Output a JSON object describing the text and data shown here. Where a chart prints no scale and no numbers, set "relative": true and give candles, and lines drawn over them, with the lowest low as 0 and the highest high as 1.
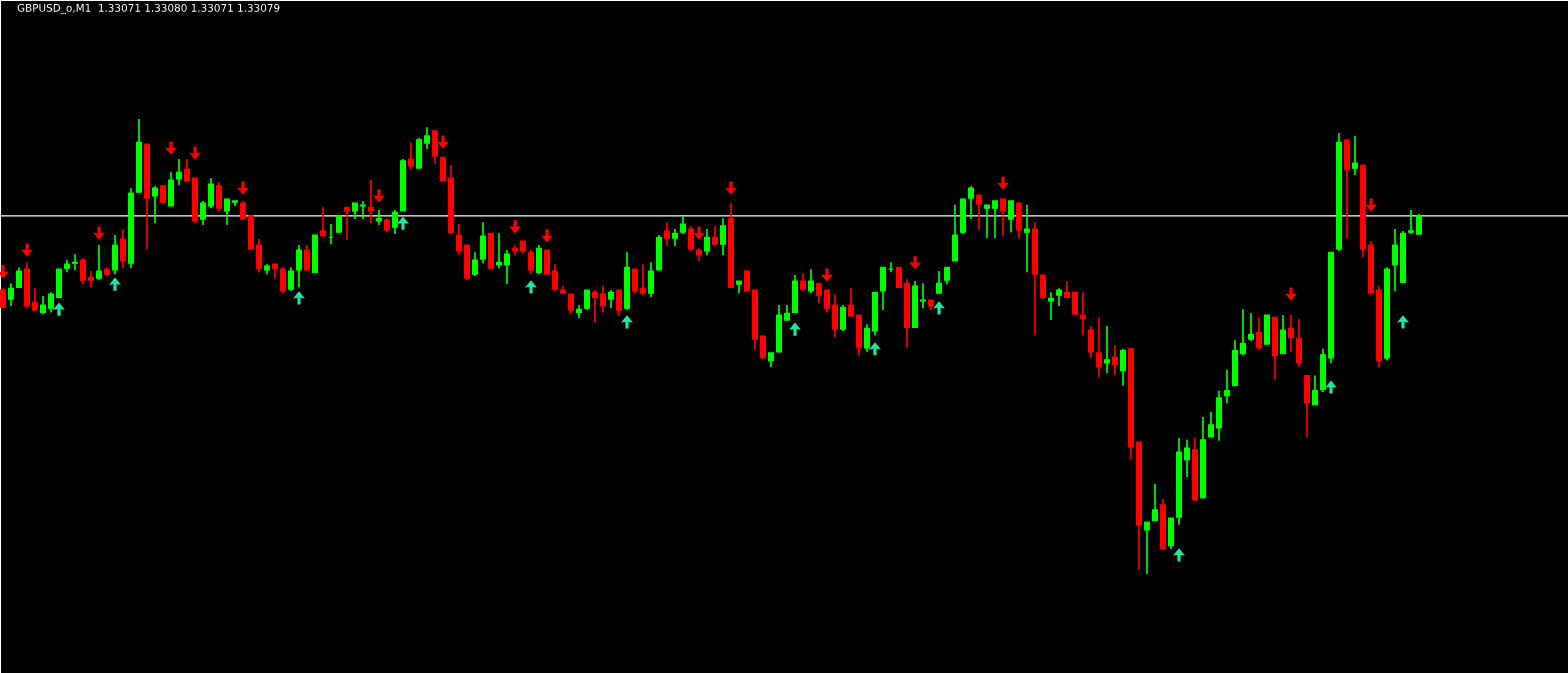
{
  "chart_data": {
    "type": "candlestick",
    "title": "GBPUSD_o,M1  1.33071 1.33080 1.33071 1.33079",
    "relative": true,
    "categories": [
      null,
      null,
      null,
      null,
      null,
      null,
      null,
      null,
      null,
      null,
      null,
      null,
      null,
      null,
      null,
      null,
      null,
      null,
      null,
      null,
      null,
      null,
      null,
      null,
      null,
      null,
      null,
      null,
      null,
      null,
      null,
      null,
      null,
      null,
      null,
      null,
      null,
      null,
      null,
      null,
      null,
      null,
      null,
      null,
      null,
      null,
      null,
      null,
      null,
      null,
      null,
      null,
      null,
      null,
      null,
      null,
      null,
      null,
      null,
      null,
      null,
      null,
      null,
      null,
      null,
      null,
      null,
      null,
      null,
      null,
      null,
      null,
      null,
      null,
      null,
      null,
      null,
      null,
      null,
      null,
      null,
      null,
      null,
      null,
      null,
      null,
      null,
      null,
      null,
      null,
      null,
      null,
      null,
      null,
      null,
      null,
      null,
      null,
      null,
      null,
      null,
      null,
      null,
      null,
      null,
      null,
      null,
      null,
      null,
      null,
      null,
      null,
      null,
      null,
      null,
      null,
      null,
      null,
      null,
      null,
      null,
      null,
      null,
      null,
      null,
      null,
      null,
      null,
      null,
      null,
      null,
      null,
      null,
      null,
      null,
      null,
      null,
      null,
      null,
      null,
      null,
      null,
      null,
      null,
      null,
      null,
      null,
      null,
      null,
      null,
      null,
      null,
      null,
      null,
      null,
      null,
      null,
      null,
      null,
      null,
      null,
      null,
      null,
      null,
      null,
      null,
      null,
      null,
      null,
      null,
      null,
      null,
      null,
      null,
      null,
      null,
      null,
      null
    ],
    "ohlc": [
      [
        0.624,
        0.628,
        0.584,
        0.586
      ],
      [
        0.604,
        0.639,
        0.589,
        0.628
      ],
      [
        0.63,
        0.674,
        0.63,
        0.666
      ],
      [
        0.67,
        0.685,
        0.584,
        0.589
      ],
      [
        0.597,
        0.628,
        0.58,
        0.58
      ],
      [
        0.575,
        0.611,
        0.571,
        0.591
      ],
      [
        0.584,
        0.619,
        0.575,
        0.615
      ],
      [
        0.608,
        0.67,
        0.608,
        0.67
      ],
      [
        0.672,
        0.69,
        0.663,
        0.681
      ],
      [
        0.683,
        0.703,
        0.668,
        0.685
      ],
      [
        0.69,
        0.694,
        0.637,
        0.646
      ],
      [
        0.652,
        0.666,
        0.63,
        0.646
      ],
      [
        0.65,
        0.723,
        0.646,
        0.666
      ],
      [
        0.67,
        0.674,
        0.655,
        0.659
      ],
      [
        0.668,
        0.745,
        0.659,
        0.723
      ],
      [
        0.736,
        0.758,
        0.672,
        0.688
      ],
      [
        0.683,
        0.848,
        0.672,
        0.837
      ],
      [
        0.839,
        1.0,
        0.839,
        0.949
      ],
      [
        0.945,
        0.945,
        0.714,
        0.826
      ],
      [
        0.831,
        0.853,
        0.771,
        0.848
      ],
      [
        0.853,
        0.853,
        0.813,
        0.817
      ],
      [
        0.809,
        0.883,
        0.809,
        0.866
      ],
      [
        0.868,
        0.912,
        0.855,
        0.883
      ],
      [
        0.89,
        0.912,
        0.864,
        0.864
      ],
      [
        0.87,
        0.87,
        0.771,
        0.776
      ],
      [
        0.78,
        0.82,
        0.767,
        0.815
      ],
      [
        0.809,
        0.87,
        0.804,
        0.857
      ],
      [
        0.853,
        0.861,
        0.798,
        0.804
      ],
      [
        0.798,
        0.824,
        0.767,
        0.824
      ],
      [
        0.817,
        0.82,
        0.809,
        0.82
      ],
      [
        0.815,
        0.82,
        0.78,
        0.78
      ],
      [
        0.787,
        0.787,
        0.714,
        0.714
      ],
      [
        0.723,
        0.736,
        0.663,
        0.672
      ],
      [
        0.668,
        0.681,
        0.659,
        0.677
      ],
      [
        0.681,
        0.681,
        0.65,
        0.672
      ],
      [
        0.67,
        0.674,
        0.617,
        0.622
      ],
      [
        0.626,
        0.674,
        0.622,
        0.666
      ],
      [
        0.668,
        0.723,
        0.63,
        0.712
      ],
      [
        0.712,
        0.723,
        0.668,
        0.668
      ],
      [
        0.663,
        0.745,
        0.663,
        0.745
      ],
      [
        0.754,
        0.806,
        0.743,
        0.743
      ],
      [
        0.74,
        0.769,
        0.725,
        0.74
      ],
      [
        0.751,
        0.787,
        0.751,
        0.787
      ],
      [
        0.806,
        0.806,
        0.734,
        0.798
      ],
      [
        0.798,
        0.815,
        0.78,
        0.815
      ],
      [
        0.809,
        0.82,
        0.78,
        0.811
      ],
      [
        0.806,
        0.866,
        0.771,
        0.798
      ],
      [
        0.776,
        0.8,
        0.767,
        0.782
      ],
      [
        0.778,
        0.782,
        0.751,
        0.756
      ],
      [
        0.762,
        0.8,
        0.747,
        0.795
      ],
      [
        0.798,
        0.912,
        0.798,
        0.908
      ],
      [
        0.912,
        0.949,
        0.888,
        0.897
      ],
      [
        0.892,
        0.958,
        0.892,
        0.954
      ],
      [
        0.947,
        0.982,
        0.934,
        0.963
      ],
      [
        0.974,
        0.974,
        0.901,
        0.919
      ],
      [
        0.916,
        0.916,
        0.864,
        0.864
      ],
      [
        0.87,
        0.899,
        0.747,
        0.751
      ],
      [
        0.745,
        0.769,
        0.701,
        0.71
      ],
      [
        0.723,
        0.723,
        0.646,
        0.65
      ],
      [
        0.659,
        0.707,
        0.655,
        0.69
      ],
      [
        0.692,
        0.773,
        0.683,
        0.743
      ],
      [
        0.749,
        0.749,
        0.672,
        0.672
      ],
      [
        0.679,
        0.749,
        0.672,
        0.685
      ],
      [
        0.679,
        0.712,
        0.637,
        0.703
      ],
      [
        0.716,
        0.723,
        0.701,
        0.71
      ],
      [
        0.732,
        0.732,
        0.705,
        0.71
      ],
      [
        0.707,
        0.712,
        0.659,
        0.668
      ],
      [
        0.663,
        0.723,
        0.659,
        0.716
      ],
      [
        0.712,
        0.712,
        0.659,
        0.659
      ],
      [
        0.666,
        0.681,
        0.622,
        0.626
      ],
      [
        0.624,
        0.633,
        0.617,
        0.617
      ],
      [
        0.615,
        0.615,
        0.571,
        0.58
      ],
      [
        0.575,
        0.591,
        0.562,
        0.582
      ],
      [
        0.584,
        0.624,
        0.58,
        0.624
      ],
      [
        0.619,
        0.624,
        0.553,
        0.608
      ],
      [
        0.615,
        0.633,
        0.575,
        0.589
      ],
      [
        0.604,
        0.624,
        0.584,
        0.619
      ],
      [
        0.624,
        0.624,
        0.567,
        0.58
      ],
      [
        0.584,
        0.707,
        0.58,
        0.674
      ],
      [
        0.67,
        0.67,
        0.617,
        0.622
      ],
      [
        0.628,
        0.681,
        0.613,
        0.617
      ],
      [
        0.617,
        0.685,
        0.608,
        0.666
      ],
      [
        0.668,
        0.745,
        0.668,
        0.74
      ],
      [
        0.754,
        0.773,
        0.721,
        0.738
      ],
      [
        0.738,
        0.758,
        0.721,
        0.749
      ],
      [
        0.751,
        0.787,
        0.747,
        0.769
      ],
      [
        0.758,
        0.765,
        0.71,
        0.714
      ],
      [
        0.712,
        0.716,
        0.688,
        0.701
      ],
      [
        0.71,
        0.758,
        0.701,
        0.74
      ],
      [
        0.74,
        0.765,
        0.721,
        0.725
      ],
      [
        0.725,
        0.782,
        0.701,
        0.765
      ],
      [
        0.782,
        0.815,
        0.63,
        0.63
      ],
      [
        0.637,
        0.644,
        0.617,
        0.644
      ],
      [
        0.666,
        0.666,
        0.622,
        0.622
      ],
      [
        0.624,
        0.624,
        0.493,
        0.516
      ],
      [
        0.523,
        0.523,
        0.475,
        0.475
      ],
      [
        0.469,
        0.486,
        0.455,
        0.486
      ],
      [
        0.488,
        0.591,
        0.488,
        0.569
      ],
      [
        0.558,
        0.591,
        0.558,
        0.573
      ],
      [
        0.575,
        0.657,
        0.575,
        0.644
      ],
      [
        0.644,
        0.661,
        0.622,
        0.626
      ],
      [
        0.622,
        0.67,
        0.617,
        0.644
      ],
      [
        0.639,
        0.639,
        0.595,
        0.613
      ],
      [
        0.624,
        0.624,
        0.575,
        0.584
      ],
      [
        0.591,
        0.615,
        0.52,
        0.538
      ],
      [
        0.538,
        0.591,
        0.534,
        0.586
      ],
      [
        0.591,
        0.628,
        0.567,
        0.567
      ],
      [
        0.569,
        0.569,
        0.48,
        0.497
      ],
      [
        0.497,
        0.549,
        0.488,
        0.54
      ],
      [
        0.534,
        0.619,
        0.525,
        0.619
      ],
      [
        0.622,
        0.674,
        0.58,
        0.674
      ],
      [
        0.67,
        0.685,
        0.663,
        0.67
      ],
      [
        0.674,
        0.674,
        0.63,
        0.63
      ],
      [
        0.639,
        0.648,
        0.497,
        0.542
      ],
      [
        0.542,
        0.644,
        0.542,
        0.633
      ],
      [
        0.6,
        0.639,
        0.584,
        0.602
      ],
      [
        0.602,
        0.602,
        0.58,
        0.589
      ],
      [
        0.617,
        0.666,
        0.617,
        0.639
      ],
      [
        0.646,
        0.674,
        0.637,
        0.674
      ],
      [
        0.688,
        0.811,
        0.688,
        0.745
      ],
      [
        0.751,
        0.824,
        0.747,
        0.824
      ],
      [
        0.826,
        0.853,
        0.78,
        0.848
      ],
      [
        0.833,
        0.833,
        0.756,
        0.813
      ],
      [
        0.804,
        0.811,
        0.738,
        0.811
      ],
      [
        0.804,
        0.82,
        0.738,
        0.82
      ],
      [
        0.824,
        0.824,
        0.743,
        0.798
      ],
      [
        0.78,
        0.82,
        0.751,
        0.82
      ],
      [
        0.815,
        0.815,
        0.738,
        0.756
      ],
      [
        0.751,
        0.811,
        0.663,
        0.758
      ],
      [
        0.758,
        0.773,
        0.525,
        0.659
      ],
      [
        0.657,
        0.657,
        0.604,
        0.608
      ],
      [
        0.6,
        0.619,
        0.558,
        0.606
      ],
      [
        0.613,
        0.628,
        0.589,
        0.624
      ],
      [
        0.619,
        0.644,
        0.608,
        0.608
      ],
      [
        0.619,
        0.619,
        0.571,
        0.571
      ],
      [
        0.569,
        0.619,
        0.525,
        0.562
      ],
      [
        0.536,
        0.545,
        0.475,
        0.488
      ],
      [
        0.486,
        0.564,
        0.433,
        0.455
      ],
      [
        0.464,
        0.545,
        0.442,
        0.471
      ],
      [
        0.477,
        0.503,
        0.438,
        0.46
      ],
      [
        0.447,
        0.495,
        0.414,
        0.491
      ],
      [
        0.495,
        0.495,
        0.251,
        0.279
      ],
      [
        0.29,
        0.29,
        0.009,
        0.108
      ],
      [
        0.097,
        0.114,
        0.0,
        0.114
      ],
      [
        0.117,
        0.198,
        0.117,
        0.141
      ],
      [
        0.152,
        0.165,
        0.055,
        0.055
      ],
      [
        0.062,
        0.123,
        0.055,
        0.123
      ],
      [
        0.125,
        0.299,
        0.108,
        0.268
      ],
      [
        0.251,
        0.295,
        0.213,
        0.277
      ],
      [
        0.273,
        0.299,
        0.163,
        0.163
      ],
      [
        0.167,
        0.345,
        0.167,
        0.295
      ],
      [
        0.301,
        0.356,
        0.301,
        0.328
      ],
      [
        0.321,
        0.403,
        0.293,
        0.387
      ],
      [
        0.392,
        0.449,
        0.376,
        0.403
      ],
      [
        0.414,
        0.514,
        0.414,
        0.491
      ],
      [
        0.484,
        0.582,
        0.48,
        0.507
      ],
      [
        0.516,
        0.573,
        0.512,
        0.527
      ],
      [
        0.531,
        0.564,
        0.493,
        0.497
      ],
      [
        0.505,
        0.569,
        0.505,
        0.569
      ],
      [
        0.564,
        0.564,
        0.427,
        0.48
      ],
      [
        0.484,
        0.569,
        0.484,
        0.536
      ],
      [
        0.54,
        0.569,
        0.488,
        0.52
      ],
      [
        0.518,
        0.56,
        0.455,
        0.464
      ],
      [
        0.436,
        0.436,
        0.301,
        0.376
      ],
      [
        0.372,
        0.436,
        0.372,
        0.403
      ],
      [
        0.405,
        0.495,
        0.4,
        0.482
      ],
      [
        0.475,
        0.707,
        0.464,
        0.707
      ],
      [
        0.714,
        0.969,
        0.71,
        0.949
      ],
      [
        0.954,
        0.954,
        0.738,
        0.888
      ],
      [
        0.892,
        0.963,
        0.877,
        0.903
      ],
      [
        0.899,
        0.899,
        0.696,
        0.714
      ],
      [
        0.723,
        0.732,
        0.613,
        0.617
      ],
      [
        0.624,
        0.633,
        0.455,
        0.469
      ],
      [
        0.475,
        0.674,
        0.469,
        0.67
      ],
      [
        0.679,
        0.758,
        0.622,
        0.723
      ],
      [
        0.641,
        0.754,
        0.641,
        0.749
      ],
      [
        0.751,
        0.8,
        0.747,
        0.754
      ],
      [
        0.747,
        0.791,
        0.747,
        0.787
      ]
    ],
    "colors": [
      "#ff0000",
      "#00ff00",
      "#00ff00",
      "#ff0000",
      "#ff0000",
      "#00ff00",
      "#00ff00",
      "#00ff00",
      "#00ff00",
      "#00ff00",
      "#ff0000",
      "#ff0000",
      "#00ff00",
      "#ff0000",
      "#00ff00",
      "#ff0000",
      "#00ff00",
      "#00ff00",
      "#ff0000",
      "#00ff00",
      "#ff0000",
      "#00ff00",
      "#00ff00",
      "#ff0000",
      "#ff0000",
      "#00ff00",
      "#00ff00",
      "#ff0000",
      "#00ff00",
      "#00ff00",
      "#ff0000",
      "#ff0000",
      "#ff0000",
      "#00ff00",
      "#ff0000",
      "#ff0000",
      "#00ff00",
      "#00ff00",
      "#ff0000",
      "#00ff00",
      "#ff0000",
      "#00ff00",
      "#00ff00",
      "#ff0000",
      "#00ff00",
      "#00ff00",
      "#ff0000",
      "#00ff00",
      "#ff0000",
      "#00ff00",
      "#00ff00",
      "#ff0000",
      "#00ff00",
      "#00ff00",
      "#ff0000",
      "#ff0000",
      "#ff0000",
      "#ff0000",
      "#ff0000",
      "#00ff00",
      "#00ff00",
      "#ff0000",
      "#00ff00",
      "#00ff00",
      "#ff0000",
      "#ff0000",
      "#ff0000",
      "#00ff00",
      "#ff0000",
      "#ff0000",
      "#ff0000",
      "#ff0000",
      "#00ff00",
      "#00ff00",
      "#ff0000",
      "#ff0000",
      "#00ff00",
      "#ff0000",
      "#00ff00",
      "#ff0000",
      "#ff0000",
      "#00ff00",
      "#00ff00",
      "#ff0000",
      "#00ff00",
      "#00ff00",
      "#ff0000",
      "#ff0000",
      "#00ff00",
      "#ff0000",
      "#00ff00",
      "#ff0000",
      "#00ff00",
      "#ff0000",
      "#ff0000",
      "#ff0000",
      "#00ff00",
      "#00ff00",
      "#00ff00",
      "#00ff00",
      "#ff0000",
      "#00ff00",
      "#ff0000",
      "#ff0000",
      "#ff0000",
      "#00ff00",
      "#ff0000",
      "#ff0000",
      "#00ff00",
      "#00ff00",
      "#00ff00",
      "#00ff00",
      "#ff0000",
      "#ff0000",
      "#00ff00",
      "#00ff00",
      "#ff0000",
      "#00ff00",
      "#00ff00",
      "#00ff00",
      "#00ff00",
      "#00ff00",
      "#ff0000",
      "#00ff00",
      "#00ff00",
      "#ff0000",
      "#00ff00",
      "#ff0000",
      "#00ff00",
      "#ff0000",
      "#ff0000",
      "#00ff00",
      "#00ff00",
      "#ff0000",
      "#ff0000",
      "#ff0000",
      "#ff0000",
      "#ff0000",
      "#00ff00",
      "#ff0000",
      "#00ff00",
      "#ff0000",
      "#ff0000",
      "#00ff00",
      "#00ff00",
      "#ff0000",
      "#00ff00",
      "#00ff00",
      "#00ff00",
      "#ff0000",
      "#00ff00",
      "#00ff00",
      "#00ff00",
      "#00ff00",
      "#00ff00",
      "#00ff00",
      "#00ff00",
      "#ff0000",
      "#00ff00",
      "#ff0000",
      "#00ff00",
      "#ff0000",
      "#ff0000",
      "#ff0000",
      "#00ff00",
      "#00ff00",
      "#00ff00",
      "#00ff00",
      "#ff0000",
      "#00ff00",
      "#ff0000",
      "#ff0000",
      "#ff0000",
      "#00ff00",
      "#00ff00",
      "#00ff00",
      "#00ff00",
      "#00ff00"
    ],
    "ref_lines": [
      {
        "axis": "y",
        "value": 0.787,
        "color": "#ffffff"
      }
    ],
    "series": [
      {
        "type": "scatter",
        "color": "#ff0000",
        "values": [
          0.664,
          null,
          null,
          0.712,
          null,
          null,
          null,
          null,
          null,
          null,
          null,
          null,
          0.749,
          null,
          null,
          null,
          null,
          null,
          null,
          null,
          null,
          0.936,
          null,
          null,
          0.925,
          null,
          null,
          null,
          null,
          null,
          0.848,
          null,
          null,
          null,
          null,
          null,
          null,
          null,
          null,
          null,
          null,
          null,
          null,
          null,
          null,
          null,
          null,
          0.831,
          null,
          null,
          null,
          null,
          null,
          null,
          null,
          0.949,
          null,
          null,
          null,
          null,
          null,
          null,
          null,
          null,
          0.763,
          null,
          null,
          null,
          0.743,
          null,
          null,
          null,
          null,
          null,
          null,
          null,
          null,
          null,
          null,
          null,
          null,
          null,
          null,
          null,
          null,
          null,
          null,
          0.749,
          null,
          null,
          null,
          0.848,
          null,
          null,
          null,
          null,
          null,
          null,
          null,
          null,
          null,
          null,
          null,
          0.657,
          null,
          null,
          null,
          null,
          null,
          null,
          null,
          null,
          null,
          null,
          0.684,
          null,
          null,
          null,
          null,
          null,
          null,
          null,
          null,
          null,
          null,
          0.859,
          null,
          null,
          null,
          null,
          null,
          null,
          null,
          null,
          null,
          null,
          null,
          null,
          null,
          null,
          null,
          null,
          null,
          null,
          null,
          null,
          null,
          null,
          null,
          null,
          null,
          null,
          null,
          null,
          null,
          null,
          null,
          null,
          null,
          null,
          null,
          0.615,
          null,
          null,
          null,
          null,
          null,
          null,
          null,
          null,
          null,
          0.811,
          null,
          null,
          null,
          null,
          null,
          null
        ]
      },
      {
        "type": "scatter",
        "color": "#1ee8a0",
        "values": [
          null,
          null,
          null,
          null,
          null,
          null,
          null,
          0.582,
          null,
          null,
          null,
          null,
          null,
          null,
          0.637,
          null,
          null,
          null,
          null,
          null,
          null,
          null,
          null,
          null,
          null,
          null,
          null,
          null,
          null,
          null,
          null,
          null,
          null,
          null,
          null,
          null,
          null,
          0.607,
          null,
          null,
          null,
          null,
          null,
          null,
          null,
          null,
          null,
          null,
          null,
          null,
          0.771,
          null,
          null,
          null,
          null,
          null,
          null,
          null,
          null,
          null,
          null,
          null,
          null,
          null,
          null,
          null,
          0.631,
          null,
          null,
          null,
          null,
          null,
          null,
          null,
          null,
          null,
          null,
          null,
          0.554,
          null,
          null,
          null,
          null,
          null,
          null,
          null,
          null,
          null,
          null,
          null,
          null,
          null,
          null,
          null,
          null,
          null,
          null,
          null,
          null,
          0.538,
          null,
          null,
          null,
          null,
          null,
          null,
          null,
          null,
          null,
          0.495,
          null,
          null,
          null,
          null,
          null,
          null,
          null,
          0.585,
          null,
          null,
          null,
          null,
          null,
          null,
          null,
          null,
          null,
          null,
          null,
          null,
          null,
          null,
          null,
          null,
          null,
          null,
          null,
          null,
          null,
          null,
          null,
          null,
          null,
          null,
          null,
          null,
          null,
          0.042,
          null,
          null,
          null,
          null,
          null,
          null,
          null,
          null,
          null,
          null,
          null,
          null,
          null,
          null,
          null,
          null,
          null,
          null,
          0.411,
          null,
          null,
          null,
          null,
          null,
          null,
          null,
          null,
          0.554,
          null,
          null
        ]
      }
    ]
  }
}
